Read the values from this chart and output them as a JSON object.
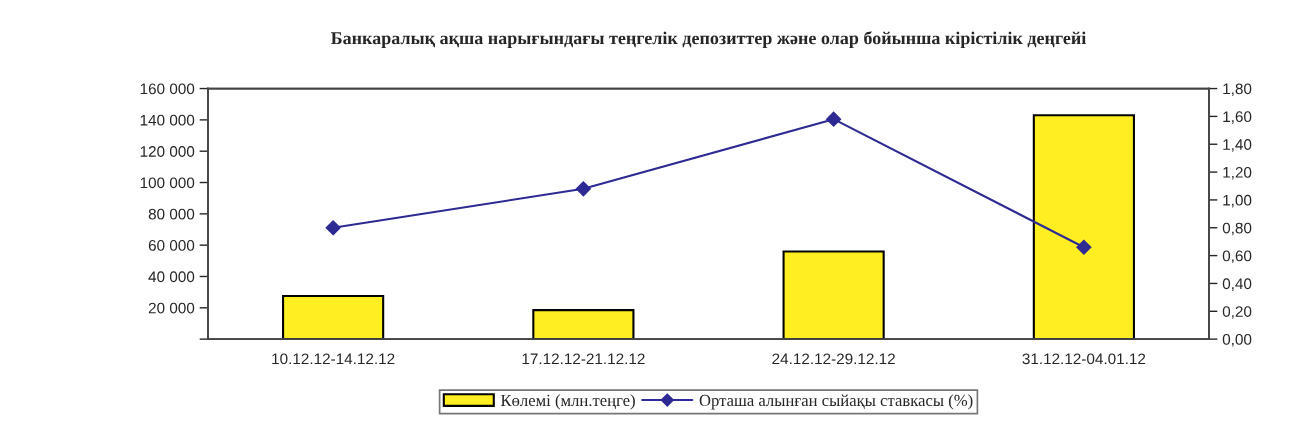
{
  "chart_data": {
    "type": "bar",
    "title": "Банкаралық ақша нарығындағы теңгелік депозиттер және олар бойынша кірістілік деңгейі",
    "categories": [
      "10.12.12-14.12.12",
      "17.12.12-21.12.12",
      "24.12.12-29.12.12",
      "31.12.12-04.01.12"
    ],
    "series": [
      {
        "name": "Көлемі (млн.теңге)",
        "color": "#ffee22",
        "values": [
          27500,
          18500,
          56000,
          143000
        ]
      },
      {
        "name": "Орташа алынған сыйақы ставкасы (%)",
        "type": "line",
        "axis": "y2",
        "color": "#2e2a94",
        "marker": "diamond",
        "values": [
          0.8,
          1.08,
          1.58,
          0.66
        ]
      }
    ],
    "ylim": [
      0,
      160000
    ],
    "yticks": [
      {
        "value": 0,
        "label": null
      },
      {
        "value": 20000,
        "label": "20 000"
      },
      {
        "value": 40000,
        "label": "40 000"
      },
      {
        "value": 60000,
        "label": "60 000"
      },
      {
        "value": 80000,
        "label": "80 000"
      },
      {
        "value": 100000,
        "label": "100 000"
      },
      {
        "value": 120000,
        "label": "120 000"
      },
      {
        "value": 140000,
        "label": "140 000"
      },
      {
        "value": 160000,
        "label": "160 000"
      }
    ],
    "y2lim": [
      0,
      1.8
    ],
    "y2ticks": [
      {
        "value": 0,
        "label": "0,00"
      },
      {
        "value": 0.2,
        "label": "0,20"
      },
      {
        "value": 0.4,
        "label": "0,40"
      },
      {
        "value": 0.6,
        "label": "0,60"
      },
      {
        "value": 0.8,
        "label": "0,80"
      },
      {
        "value": 1.0,
        "label": "1,00"
      },
      {
        "value": 1.2,
        "label": "1,20"
      },
      {
        "value": 1.4,
        "label": "1,40"
      },
      {
        "value": 1.6,
        "label": "1,60"
      },
      {
        "value": 1.8,
        "label": "1,80"
      }
    ],
    "grid": false,
    "legend": "bottom"
  }
}
